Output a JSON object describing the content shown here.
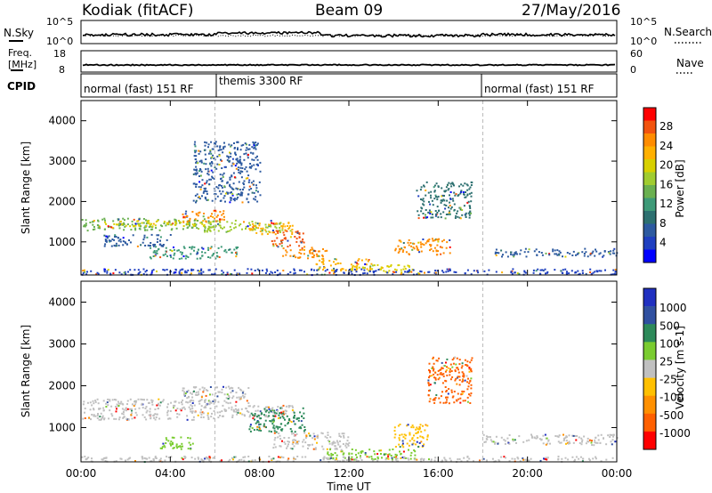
{
  "header": {
    "radar": "Kodiak (fitACF)",
    "beam": "Beam 09",
    "date": "27/May/2016"
  },
  "top_panels": {
    "nsky": {
      "label": "N.Sky",
      "left_ticks": [
        "10^5",
        "10^0"
      ],
      "right_ticks": [
        "10^5",
        "10^0"
      ],
      "right_label": "N.Search"
    },
    "freq": {
      "label_line1": "Freq.",
      "label_line2": "[MHz]",
      "left_ticks": [
        "18",
        "8"
      ],
      "right_ticks": [
        "60",
        "0"
      ],
      "right_label": "Nave"
    },
    "cpid": {
      "label": "CPID",
      "segments": [
        "normal (fast) 151 RF",
        "themis 3300 RF",
        "normal (fast) 151 RF"
      ]
    }
  },
  "chart_data": [
    {
      "type": "heatmap",
      "name": "power",
      "ylabel": "Slant Range [km]",
      "xlabel": "Time UT",
      "y_ticks": [
        "4000",
        "3000",
        "2000",
        "1000"
      ],
      "x_ticks": [
        "00:00",
        "04:00",
        "08:00",
        "12:00",
        "16:00",
        "20:00",
        "00:00"
      ],
      "ylim": [
        180,
        4500
      ],
      "xlim": [
        0,
        24
      ],
      "colorbar": {
        "label": "Power [dB]",
        "ticks": [
          "28",
          "24",
          "20",
          "16",
          "12",
          "8",
          "4"
        ],
        "colors": [
          "#ff0000",
          "#f2530e",
          "#ff8c00",
          "#ffb000",
          "#d8d000",
          "#a0cc30",
          "#6ab050",
          "#3e9a78",
          "#2d7070",
          "#2d5aa0",
          "#1f3fc0",
          "#0000ff"
        ]
      },
      "patches": [
        {
          "t": [
            0.0,
            6.0
          ],
          "r": [
            1300,
            1600
          ],
          "c": "#6ab050"
        },
        {
          "t": [
            1.0,
            5.5
          ],
          "r": [
            1400,
            1550
          ],
          "c": "#d8d000"
        },
        {
          "t": [
            4.5,
            6.5
          ],
          "r": [
            1500,
            1800
          ],
          "c": "#ff8c00"
        },
        {
          "t": [
            5.5,
            9.0
          ],
          "r": [
            1250,
            1550
          ],
          "c": "#a0cc30"
        },
        {
          "t": [
            7.5,
            9.5
          ],
          "r": [
            1200,
            1500
          ],
          "c": "#ffb000"
        },
        {
          "t": [
            8.5,
            10.0
          ],
          "r": [
            900,
            1300
          ],
          "c": "#f2530e"
        },
        {
          "t": [
            9.0,
            11.0
          ],
          "r": [
            600,
            900
          ],
          "c": "#ff8c00"
        },
        {
          "t": [
            10.5,
            13.0
          ],
          "r": [
            300,
            600
          ],
          "c": "#ffb000"
        },
        {
          "t": [
            12.0,
            15.0
          ],
          "r": [
            250,
            450
          ],
          "c": "#d8d000"
        },
        {
          "t": [
            14.0,
            16.5
          ],
          "r": [
            700,
            1100
          ],
          "c": "#ff8c00"
        },
        {
          "t": [
            15.0,
            17.5
          ],
          "r": [
            1600,
            2500
          ],
          "c": "#2d7070"
        },
        {
          "t": [
            18.5,
            24.0
          ],
          "r": [
            650,
            850
          ],
          "c": "#2d5aa0"
        },
        {
          "t": [
            0.0,
            24.0
          ],
          "r": [
            200,
            350
          ],
          "c": "#1f3fc0"
        },
        {
          "t": [
            5.0,
            8.0
          ],
          "r": [
            2000,
            3500
          ],
          "c": "#2d5aa0"
        },
        {
          "t": [
            1.0,
            4.0
          ],
          "r": [
            900,
            1200
          ],
          "c": "#2d5aa0"
        },
        {
          "t": [
            3.0,
            7.0
          ],
          "r": [
            600,
            900
          ],
          "c": "#3e9a78"
        }
      ]
    },
    {
      "type": "heatmap",
      "name": "velocity",
      "ylabel": "Slant Range [km]",
      "xlabel": "Time UT",
      "y_ticks": [
        "4000",
        "3000",
        "2000",
        "1000"
      ],
      "x_ticks": [
        "00:00",
        "04:00",
        "08:00",
        "12:00",
        "16:00",
        "20:00",
        "00:00"
      ],
      "ylim": [
        180,
        4500
      ],
      "xlim": [
        0,
        24
      ],
      "colorbar": {
        "label": "Velocity [m s-1]",
        "ticks": [
          "1000",
          "500",
          "100",
          "25",
          "-25",
          "-100",
          "-500",
          "-1000"
        ],
        "colors": [
          "#2030c0",
          "#3050a0",
          "#2d8a5a",
          "#7acc30",
          "#c0c0c0",
          "#ffc000",
          "#ff9000",
          "#ff6000",
          "#ff0000"
        ]
      },
      "patches": [
        {
          "t": [
            0.0,
            6.0
          ],
          "r": [
            1200,
            1700
          ],
          "c": "#c0c0c0"
        },
        {
          "t": [
            4.5,
            7.5
          ],
          "r": [
            1600,
            2000
          ],
          "c": "#c0c0c0"
        },
        {
          "t": [
            6.0,
            9.5
          ],
          "r": [
            1250,
            1550
          ],
          "c": "#c0c0c0"
        },
        {
          "t": [
            7.5,
            10.0
          ],
          "r": [
            900,
            1500
          ],
          "c": "#2d8a5a"
        },
        {
          "t": [
            8.5,
            12.0
          ],
          "r": [
            500,
            900
          ],
          "c": "#c0c0c0"
        },
        {
          "t": [
            11.0,
            15.0
          ],
          "r": [
            250,
            500
          ],
          "c": "#7acc30"
        },
        {
          "t": [
            14.0,
            15.5
          ],
          "r": [
            550,
            1100
          ],
          "c": "#ffc000"
        },
        {
          "t": [
            15.5,
            17.5
          ],
          "r": [
            1600,
            2700
          ],
          "c": "#ff6000"
        },
        {
          "t": [
            18.0,
            24.0
          ],
          "r": [
            600,
            850
          ],
          "c": "#c0c0c0"
        },
        {
          "t": [
            3.5,
            5.0
          ],
          "r": [
            500,
            800
          ],
          "c": "#7acc30"
        },
        {
          "t": [
            0.0,
            24.0
          ],
          "r": [
            200,
            330
          ],
          "c": "#c0c0c0"
        }
      ]
    }
  ]
}
